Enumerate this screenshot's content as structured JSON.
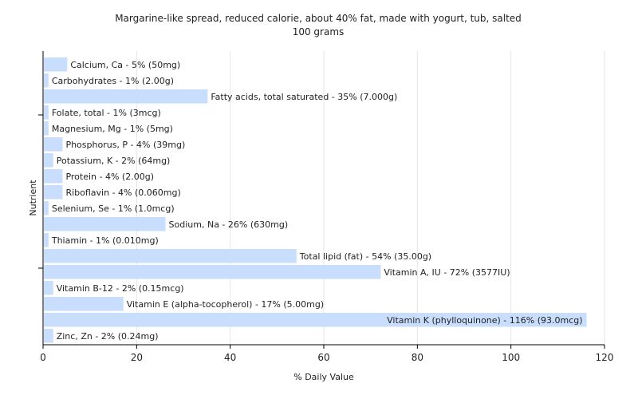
{
  "chart_data": {
    "type": "bar",
    "orientation": "horizontal",
    "title": "Margarine-like spread, reduced calorie, about 40% fat, made with yogurt, tub, salted",
    "subtitle": "100 grams",
    "xlabel": "% Daily Value",
    "ylabel": "Nutrient",
    "xlim": [
      0,
      120
    ],
    "xticks": [
      0,
      20,
      40,
      60,
      80,
      100,
      120
    ],
    "grid": true,
    "bar_color": "#c9ddfc",
    "categories": [
      "Calcium, Ca",
      "Carbohydrates",
      "Fatty acids, total saturated",
      "Folate, total",
      "Magnesium, Mg",
      "Phosphorus, P",
      "Potassium, K",
      "Protein",
      "Riboflavin",
      "Selenium, Se",
      "Sodium, Na",
      "Thiamin",
      "Total lipid (fat)",
      "Vitamin A, IU",
      "Vitamin B-12",
      "Vitamin E (alpha-tocopherol)",
      "Vitamin K (phylloquinone)",
      "Zinc, Zn"
    ],
    "values": [
      5,
      1,
      35,
      1,
      1,
      4,
      2,
      4,
      4,
      1,
      26,
      1,
      54,
      72,
      2,
      17,
      116,
      2
    ],
    "labels": [
      "Calcium, Ca - 5% (50mg)",
      "Carbohydrates - 1% (2.00g)",
      "Fatty acids, total saturated - 35% (7.000g)",
      "Folate, total - 1% (3mcg)",
      "Magnesium, Mg - 1% (5mg)",
      "Phosphorus, P - 4% (39mg)",
      "Potassium, K - 2% (64mg)",
      "Protein - 4% (2.00g)",
      "Riboflavin - 4% (0.060mg)",
      "Selenium, Se - 1% (1.0mcg)",
      "Sodium, Na - 26% (630mg)",
      "Thiamin - 1% (0.010mg)",
      "Total lipid (fat) - 54% (35.00g)",
      "Vitamin A, IU - 72% (3577IU)",
      "Vitamin B-12 - 2% (0.15mcg)",
      "Vitamin E (alpha-tocopherol) - 17% (5.00mg)",
      "Vitamin K (phylloquinone) - 116% (93.0mcg)",
      "Zinc, Zn - 2% (0.24mg)"
    ]
  }
}
